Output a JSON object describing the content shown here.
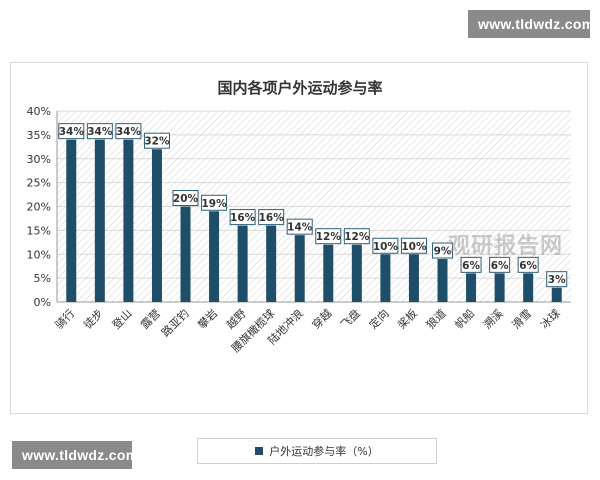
{
  "watermark": {
    "top": "www.tldwdz.com",
    "bottom": "www.tldwdz.com"
  },
  "stamp_text": "观研报告网",
  "colors": {
    "bar": "#1f4e6b",
    "label_border": "#2e5e78",
    "hatch": "#d0d0d0",
    "grid": "#d9d9d9"
  },
  "chart_data": {
    "type": "bar",
    "title": "国内各项户外运动参与率",
    "categories": [
      "骑行",
      "徒步",
      "登山",
      "露营",
      "路亚钓",
      "攀岩",
      "越野",
      "腰旗橄榄球",
      "陆地冲浪",
      "穿越",
      "飞盘",
      "定向",
      "桨板",
      "狼道",
      "帆船",
      "溯溪",
      "滑雪",
      "冰球"
    ],
    "series": [
      {
        "name": "户外运动参与率（%）",
        "values": [
          34,
          34,
          34,
          32,
          20,
          19,
          16,
          16,
          14,
          12,
          12,
          10,
          10,
          9,
          6,
          6,
          6,
          3
        ]
      }
    ],
    "data_labels": [
      "34%",
      "34%",
      "34%",
      "32%",
      "20%",
      "19%",
      "16%",
      "16%",
      "14%",
      "12%",
      "12%",
      "10%",
      "10%",
      "9%",
      "6%",
      "6%",
      "6%",
      "3%"
    ],
    "ylim": [
      0,
      40
    ],
    "yticks": [
      "0%",
      "5%",
      "10%",
      "15%",
      "20%",
      "25%",
      "30%",
      "35%",
      "40%"
    ],
    "grid": true,
    "legend": "bottom-center"
  }
}
